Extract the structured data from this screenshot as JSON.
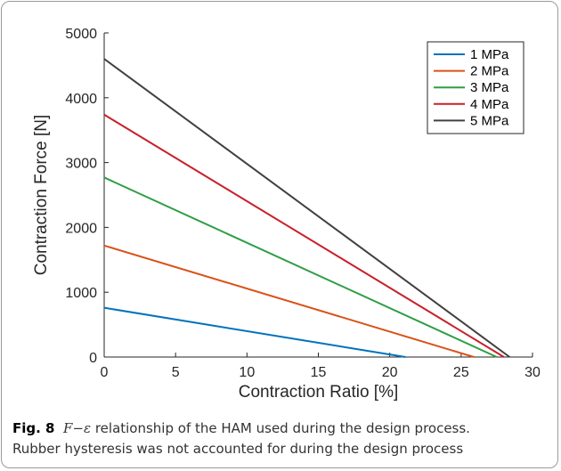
{
  "chart_data": {
    "type": "line",
    "xlabel": "Contraction Ratio [%]",
    "ylabel": "Contraction Force [N]",
    "xlim": [
      0,
      30
    ],
    "ylim": [
      0,
      5000
    ],
    "xticks": [
      0,
      5,
      10,
      15,
      20,
      25,
      30
    ],
    "yticks": [
      0,
      1000,
      2000,
      3000,
      4000,
      5000
    ],
    "grid": false,
    "legend_position": "top-right",
    "series": [
      {
        "name": "1 MPa",
        "color": "#0072BD",
        "x": [
          0,
          21.1
        ],
        "y": [
          760,
          0
        ]
      },
      {
        "name": "2 MPa",
        "color": "#D95319",
        "x": [
          0,
          25.9
        ],
        "y": [
          1720,
          0
        ]
      },
      {
        "name": "3 MPa",
        "color": "#2E9E44",
        "x": [
          0,
          27.5
        ],
        "y": [
          2770,
          0
        ]
      },
      {
        "name": "4 MPa",
        "color": "#C8202B",
        "x": [
          0,
          28.0
        ],
        "y": [
          3740,
          0
        ]
      },
      {
        "name": "5 MPa",
        "color": "#404040",
        "x": [
          0,
          28.4
        ],
        "y": [
          4600,
          0
        ]
      }
    ]
  },
  "caption": {
    "label": "Fig. 8",
    "symbol": "F−ε",
    "text_line1": " relationship of the HAM used during the design process.",
    "text_line2": "Rubber hysteresis was not accounted for during the design process"
  }
}
